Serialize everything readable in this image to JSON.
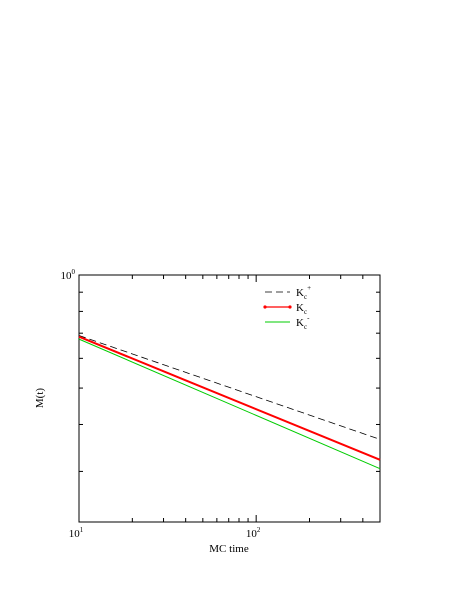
{
  "chart_data": {
    "type": "line",
    "title": "",
    "xlabel": "MC time",
    "ylabel": "M(t)",
    "x_scale": "log",
    "y_scale": "log",
    "xlim": [
      10,
      500
    ],
    "ylim": [
      0.22,
      1.0
    ],
    "grid": false,
    "legend_position": "top-right",
    "x_ticks": [
      {
        "value": 10,
        "base": "10",
        "exp": "1"
      },
      {
        "value": 100,
        "base": "10",
        "exp": "2"
      }
    ],
    "y_ticks": [
      {
        "value": 1,
        "base": "10",
        "exp": "0"
      }
    ],
    "series": [
      {
        "legend_base": "K",
        "legend_sub": "c",
        "legend_sup": "+",
        "style": "dashed",
        "color": "#000000",
        "x": [
          10,
          500
        ],
        "y": [
          0.69,
          0.365
        ]
      },
      {
        "legend_base": "K",
        "legend_sub": "c",
        "legend_sup": "",
        "style": "dotted-markers",
        "color": "#ff0000",
        "x": [
          10,
          500
        ],
        "y": [
          0.685,
          0.322
        ]
      },
      {
        "legend_base": "K",
        "legend_sub": "c",
        "legend_sup": "-",
        "style": "solid",
        "color": "#00cc00",
        "x": [
          10,
          500
        ],
        "y": [
          0.675,
          0.305
        ]
      }
    ]
  }
}
